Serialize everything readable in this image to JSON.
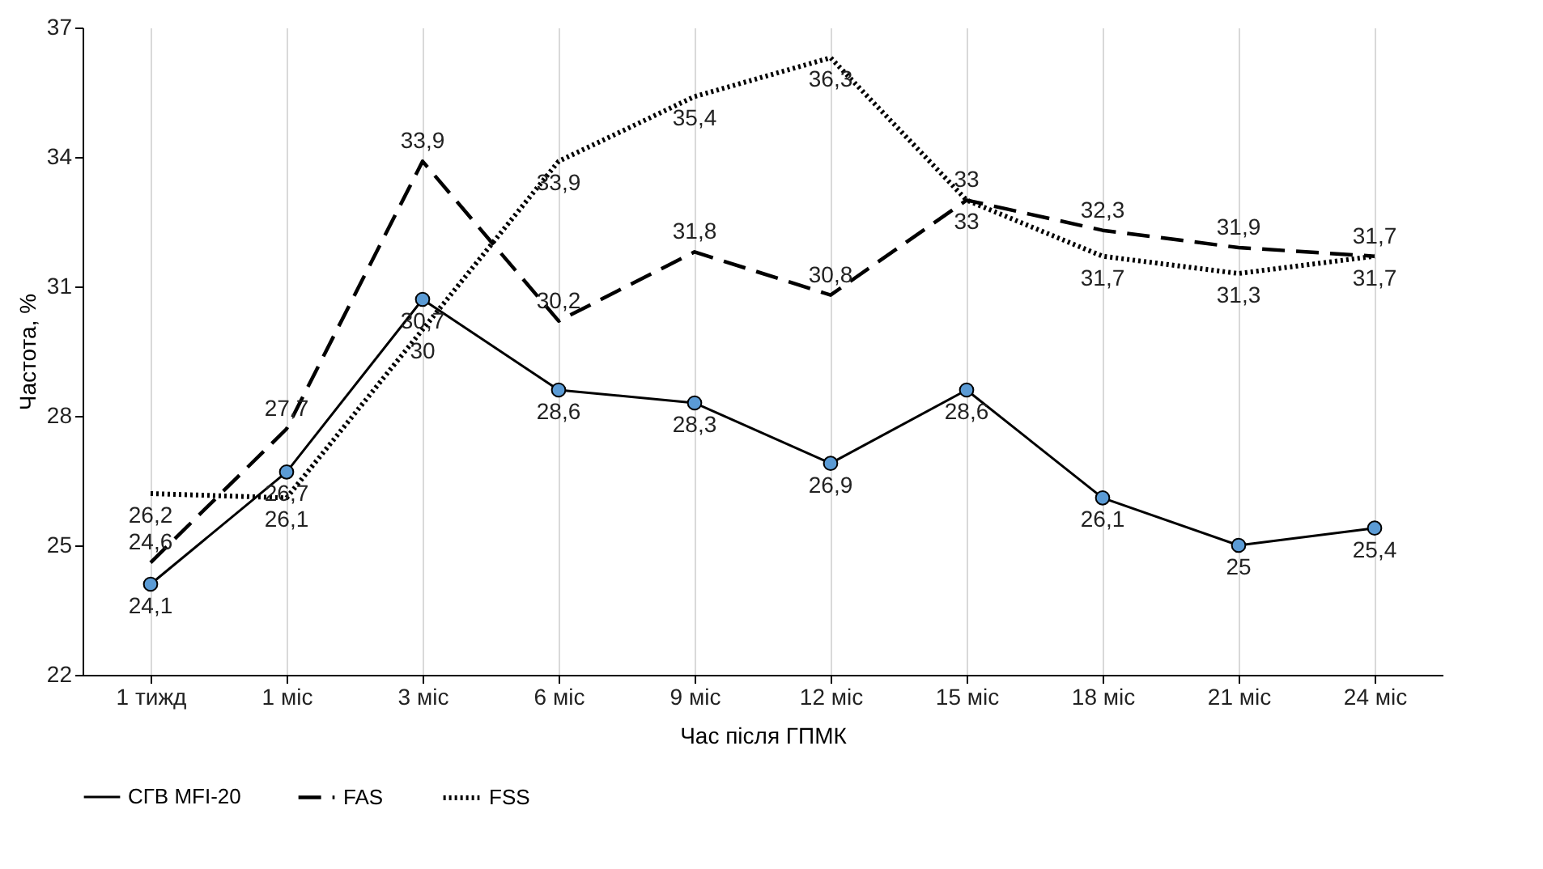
{
  "chart_data": {
    "type": "line",
    "xlabel": "Час після ГПМК",
    "ylabel": "Частота, %",
    "categories": [
      "1 тижд",
      "1 міс",
      "3 міс",
      "6 міс",
      "9 міс",
      "12 міс",
      "15 міс",
      "18 міс",
      "21 міс",
      "24 міс"
    ],
    "series": [
      {
        "name": "СГВ MFI-20",
        "color": "#000000",
        "marker": "circle",
        "line_style": "solid",
        "values": [
          24.1,
          26.7,
          30.7,
          28.6,
          28.3,
          26.9,
          28.6,
          26.1,
          25,
          25.4
        ],
        "value_labels": [
          "24,1",
          "26,7",
          "30,7",
          "28,6",
          "28,3",
          "26,9",
          "28,6",
          "26,1",
          "25",
          "25,4"
        ]
      },
      {
        "name": "FAS",
        "color": "#000000",
        "marker": "none",
        "line_style": "dashed",
        "values": [
          24.6,
          27.7,
          33.9,
          30.2,
          31.8,
          30.8,
          33,
          32.3,
          31.9,
          31.7
        ],
        "value_labels": [
          "24,6",
          "27,7",
          "33,9",
          "30,2",
          "31,8",
          "30,8",
          "33",
          "32,3",
          "31,9",
          "31,7"
        ]
      },
      {
        "name": "FSS",
        "color": "#000000",
        "marker": "none",
        "line_style": "dotted",
        "values": [
          26.2,
          26.1,
          30,
          33.9,
          35.4,
          36.3,
          33,
          31.7,
          31.3,
          31.7
        ],
        "value_labels": [
          "26,2",
          "26,1",
          "30",
          "33,9",
          "35,4",
          "36,3",
          "33",
          "31,7",
          "31,3",
          "31,7"
        ]
      }
    ],
    "ylim": [
      22,
      37
    ],
    "yticks": [
      22,
      25,
      28,
      31,
      34,
      37
    ],
    "grid": "x",
    "legend": "bottom"
  }
}
